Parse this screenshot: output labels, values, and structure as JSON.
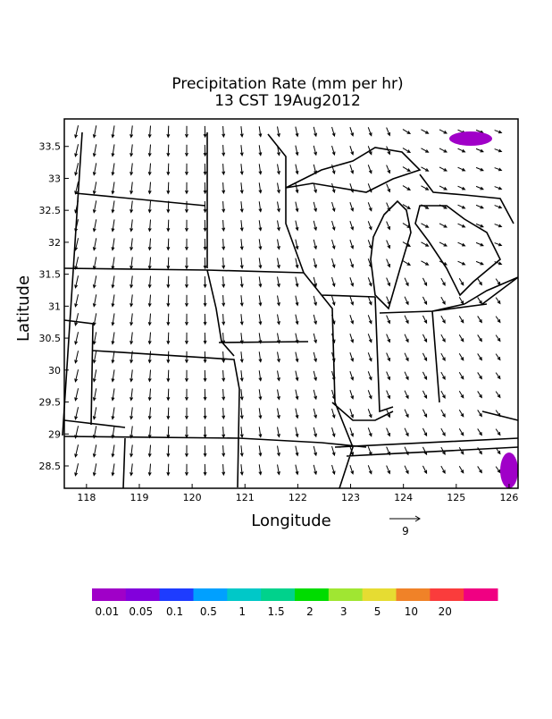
{
  "title": {
    "line1": "Precipitation Rate (mm per hr)",
    "line2": "13 CST 19Aug2012"
  },
  "x_axis": {
    "label": "Longitude",
    "lim": [
      117.58,
      126.17
    ],
    "ticks": [
      118,
      119,
      120,
      121,
      122,
      123,
      124,
      125,
      126
    ]
  },
  "y_axis": {
    "label": "Latitude",
    "lim": [
      28.15,
      33.93
    ],
    "ticks": [
      28.5,
      29,
      29.5,
      30,
      30.5,
      31,
      31.5,
      32,
      32.5,
      33,
      33.5
    ]
  },
  "reference_vector": {
    "label": "9"
  },
  "colorbar": {
    "labels": [
      0.01,
      0.05,
      0.1,
      0.5,
      1,
      1.5,
      2,
      3,
      5,
      10,
      20
    ],
    "colors": [
      "#a000c8",
      "#8200dc",
      "#1e3cff",
      "#00a0ff",
      "#00c8c8",
      "#00d28c",
      "#00dc00",
      "#a0e632",
      "#e6dc32",
      "#f08228",
      "#fa3c3c",
      "#f00082"
    ]
  }
}
